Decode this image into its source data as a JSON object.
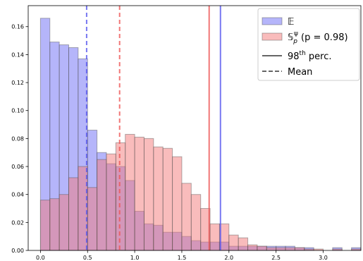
{
  "chart_data": {
    "type": "bar",
    "title": "",
    "xlabel": "",
    "ylabel": "",
    "xlim": [
      -0.13,
      3.4
    ],
    "ylim": [
      0,
      0.175
    ],
    "x_ticks": [
      0.0,
      0.5,
      1.0,
      1.5,
      2.0,
      2.5,
      3.0
    ],
    "x_tick_labels": [
      "0.0",
      "0.5",
      "1.0",
      "1.5",
      "2.0",
      "2.5",
      "3.0"
    ],
    "y_ticks": [
      0.0,
      0.02,
      0.04,
      0.06,
      0.08,
      0.1,
      0.12,
      0.14,
      0.16
    ],
    "y_tick_labels": [
      "0.00",
      "0.02",
      "0.04",
      "0.06",
      "0.08",
      "0.10",
      "0.12",
      "0.14",
      "0.16"
    ],
    "legend_placement": "top-right",
    "bin_width": 0.1,
    "series": [
      {
        "name": "𝔼",
        "kind": "histogram",
        "color": "#6b6bf5",
        "bin_start": 0.0,
        "values": [
          0.166,
          0.149,
          0.147,
          0.145,
          0.137,
          0.086,
          0.07,
          0.062,
          0.06,
          0.05,
          0.028,
          0.019,
          0.018,
          0.013,
          0.013,
          0.01,
          0.007,
          0.006,
          0.006,
          0.006,
          0.003,
          0.003,
          0.003,
          0.003,
          0.003,
          0.003,
          0.003,
          0.002,
          0.002,
          0.0,
          0.0,
          0.002,
          0.0,
          0.002
        ]
      },
      {
        "name": "𝕊",
        "kind": "histogram",
        "color": "#f47a7a",
        "bin_start": 0.0,
        "values": [
          0.036,
          0.037,
          0.04,
          0.052,
          0.06,
          0.045,
          0.065,
          0.069,
          0.077,
          0.083,
          0.081,
          0.08,
          0.074,
          0.073,
          0.067,
          0.048,
          0.04,
          0.03,
          0.019,
          0.019,
          0.011,
          0.009,
          0.004,
          0.003,
          0.002,
          0.002,
          0.002,
          0.002,
          0.001,
          0.001,
          0.0,
          0.001,
          0.0,
          0.001
        ]
      }
    ],
    "vlines": [
      {
        "series": "𝔼",
        "stat": "mean",
        "x": 0.49,
        "style": "dashed",
        "color": "#5555ee"
      },
      {
        "series": "𝕊",
        "stat": "mean",
        "x": 0.84,
        "style": "dashed",
        "color": "#ee5555"
      },
      {
        "series": "𝕊",
        "stat": "98th percentile",
        "x": 1.79,
        "style": "solid",
        "color": "#ee5555"
      },
      {
        "series": "𝔼",
        "stat": "98th percentile",
        "x": 1.91,
        "style": "solid",
        "color": "#5555ee"
      }
    ],
    "legend": [
      {
        "label": "𝔼",
        "marker": "patch",
        "color": "#6b6bf5"
      },
      {
        "label_prefix": "𝕊",
        "label_sub": "p",
        "label_sup": "ψ",
        "label_suffix": " (p = 0.98)",
        "marker": "patch",
        "color": "#f47a7a"
      },
      {
        "label_prefix": "98",
        "label_sup": "th",
        "label_suffix": " perc.",
        "marker": "solid-line",
        "color": "#666666"
      },
      {
        "label": "Mean",
        "marker": "dashed-line",
        "color": "#666666"
      }
    ]
  }
}
